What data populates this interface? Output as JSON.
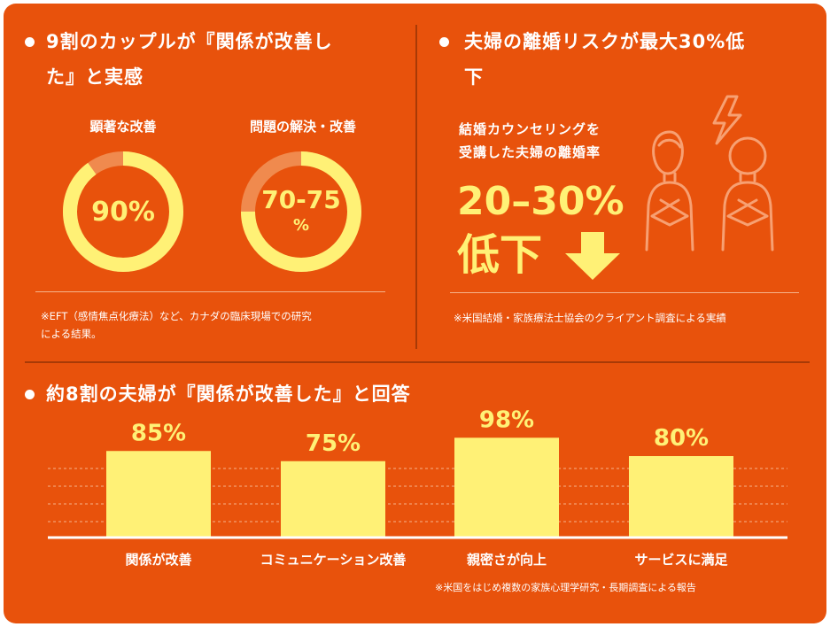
{
  "section1": {
    "heading_line1": "9割のカップルが『関係が改善し",
    "heading_line2": "た』と実感",
    "rings": [
      {
        "label": "顕著な改善",
        "value_text": "90%",
        "fraction": 0.9
      },
      {
        "label": "問題の解決・改善",
        "value_line1": "70-75",
        "value_line2": "%",
        "fraction": 0.75
      }
    ],
    "note_line1": "※EFT（感情焦点化療法）など、カナダの臨床現場での研究",
    "note_line2": "による結果。"
  },
  "section2": {
    "heading_line1": "夫婦の離婚リスクが最大30%低",
    "heading_line2": "下",
    "sub_line1": "結婚カウンセリングを",
    "sub_line2": "受講した夫婦の離婚率",
    "big_value": "20–30%",
    "big_label": "低下",
    "note": "※米国結婚・家族療法士協会のクライアント調査による実績"
  },
  "section3": {
    "heading": "約8割の夫婦が『関係が改善した』と回答",
    "note": "※米国をはじめ複数の家族心理学研究・長期調査による報告"
  },
  "chart_data": {
    "type": "bar",
    "categories": [
      "関係が改善",
      "コミュニケーション改善",
      "親密さが向上",
      "サービスに満足"
    ],
    "values": [
      85,
      75,
      98,
      80
    ],
    "value_labels": [
      "85%",
      "75%",
      "98%",
      "80%"
    ],
    "title": "",
    "xlabel": "",
    "ylabel": "",
    "grid": true,
    "bar_color": "#fff176"
  },
  "colors": {
    "background": "#e8520c",
    "accent": "#fff176",
    "divider": "#a83a06",
    "ring_track": "#f08a4e",
    "icon_line": "#f7a072"
  },
  "icons": [
    "couple-icon",
    "lightning-icon",
    "down-arrow-icon"
  ]
}
